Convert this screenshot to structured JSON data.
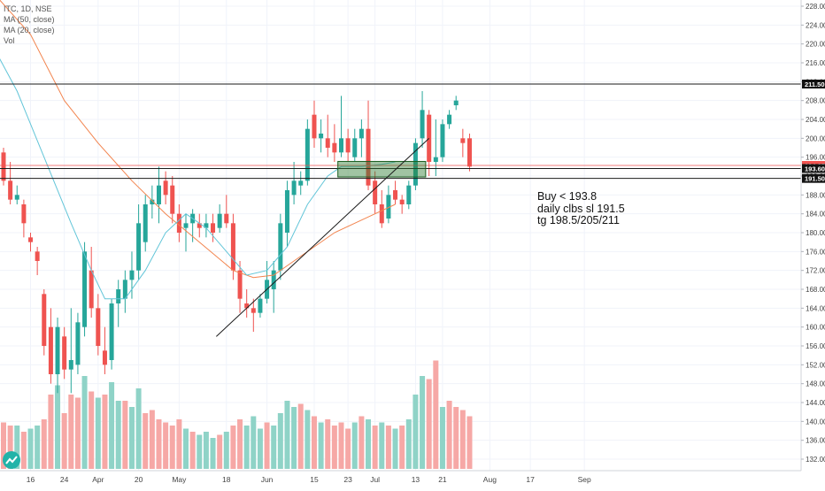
{
  "legend": {
    "symbol": "ITC, 1D, NSE",
    "ma50": "MA (50, close)",
    "ma20": "MA (20, close)",
    "vol": "Vol"
  },
  "annotation": {
    "line1": "Buy < 193.8",
    "line2": "daily clbs sl 191.5",
    "line3": "tg 198.5/205/211"
  },
  "colors": {
    "up": "#26a69a",
    "down": "#ef5350",
    "ma20": "#62c5d8",
    "ma50": "#f2844e",
    "zone": "#2e7d32"
  },
  "chart_data": {
    "type": "candlestick",
    "ylim": [
      130,
      230
    ],
    "yticks": [
      132,
      136,
      140,
      144,
      148,
      152,
      156,
      160,
      164,
      168,
      172,
      176,
      180,
      184,
      188,
      192,
      196,
      200,
      204,
      208,
      212,
      216,
      220,
      224,
      228
    ],
    "xticks": [
      {
        "label": "16",
        "i": 4
      },
      {
        "label": "24",
        "i": 9
      },
      {
        "label": "Apr",
        "i": 14
      },
      {
        "label": "20",
        "i": 20
      },
      {
        "label": "May",
        "i": 26
      },
      {
        "label": "18",
        "i": 33
      },
      {
        "label": "Jun",
        "i": 39
      },
      {
        "label": "15",
        "i": 46
      },
      {
        "label": "23",
        "i": 51
      },
      {
        "label": "Jul",
        "i": 55
      },
      {
        "label": "13",
        "i": 61
      },
      {
        "label": "21",
        "i": 65
      },
      {
        "label": "Aug",
        "i": 72
      },
      {
        "label": "17",
        "i": 78
      },
      {
        "label": "Sep",
        "i": 86
      }
    ],
    "candles": [
      [
        197,
        198,
        190,
        191
      ],
      [
        191,
        195,
        186,
        187
      ],
      [
        187,
        190,
        186,
        188
      ],
      [
        186,
        187,
        179,
        182
      ],
      [
        179,
        180,
        176,
        178
      ],
      [
        176,
        177,
        171,
        174
      ],
      [
        167,
        168,
        154,
        156
      ],
      [
        160,
        164,
        148,
        150
      ],
      [
        150,
        162,
        146,
        160
      ],
      [
        158,
        160,
        149,
        151
      ],
      [
        151,
        164,
        146,
        153
      ],
      [
        152,
        163,
        150,
        161
      ],
      [
        160,
        178,
        158,
        176
      ],
      [
        172,
        177,
        162,
        164
      ],
      [
        164,
        167,
        154,
        156
      ],
      [
        155,
        160,
        150,
        152
      ],
      [
        153,
        166,
        151,
        165
      ],
      [
        165,
        170,
        160,
        168
      ],
      [
        166,
        172,
        163,
        170
      ],
      [
        170,
        176,
        166,
        172
      ],
      [
        172,
        186,
        170,
        182
      ],
      [
        178,
        188,
        176,
        186
      ],
      [
        186,
        190,
        183,
        187
      ],
      [
        186,
        194,
        182,
        190
      ],
      [
        191,
        193,
        186,
        188
      ],
      [
        190,
        192,
        182,
        184
      ],
      [
        184,
        186,
        178,
        180
      ],
      [
        181,
        184,
        176,
        182
      ],
      [
        182,
        185,
        178,
        184
      ],
      [
        182,
        184,
        179,
        181
      ],
      [
        181,
        184,
        179,
        182
      ],
      [
        182,
        184,
        178,
        180
      ],
      [
        181,
        186,
        180,
        184
      ],
      [
        184,
        188,
        181,
        182
      ],
      [
        182,
        184,
        170,
        172
      ],
      [
        172,
        174,
        163,
        166
      ],
      [
        165,
        168,
        162,
        164
      ],
      [
        164,
        166,
        159,
        163
      ],
      [
        163,
        167,
        162,
        166
      ],
      [
        166,
        174,
        165,
        170
      ],
      [
        168,
        174,
        163,
        172
      ],
      [
        172,
        184,
        170,
        182
      ],
      [
        180,
        191,
        177,
        189
      ],
      [
        188,
        195,
        186,
        191
      ],
      [
        190,
        193,
        188,
        191
      ],
      [
        191,
        204,
        190,
        202
      ],
      [
        205,
        208,
        198,
        200
      ],
      [
        200,
        204,
        197,
        201
      ],
      [
        200,
        205,
        196,
        198
      ],
      [
        199,
        203,
        195,
        197
      ],
      [
        197,
        209,
        196,
        200
      ],
      [
        200,
        202,
        195,
        197
      ],
      [
        196,
        202,
        195,
        200
      ],
      [
        200,
        204,
        196,
        202
      ],
      [
        202,
        208,
        189,
        190
      ],
      [
        191,
        193,
        184,
        186
      ],
      [
        186,
        189,
        181,
        182
      ],
      [
        183,
        190,
        182,
        188
      ],
      [
        189,
        191,
        186,
        187
      ],
      [
        187,
        188,
        184,
        186
      ],
      [
        186,
        191,
        185,
        190
      ],
      [
        190,
        200,
        189,
        199
      ],
      [
        200,
        210,
        198,
        206
      ],
      [
        205,
        206,
        192,
        195
      ],
      [
        195,
        204,
        192,
        196
      ],
      [
        196,
        204,
        195,
        203
      ],
      [
        203,
        206,
        202,
        205
      ],
      [
        207,
        209,
        206,
        208
      ],
      [
        200,
        202,
        196,
        199
      ],
      [
        200,
        201,
        193,
        194
      ]
    ],
    "volume": [
      [
        15,
        "down"
      ],
      [
        14,
        "down"
      ],
      [
        14,
        "up"
      ],
      [
        12,
        "down"
      ],
      [
        13,
        "up"
      ],
      [
        14,
        "up"
      ],
      [
        16,
        "down"
      ],
      [
        24,
        "down"
      ],
      [
        27,
        "up"
      ],
      [
        18,
        "down"
      ],
      [
        24,
        "down"
      ],
      [
        23,
        "down"
      ],
      [
        30,
        "up"
      ],
      [
        25,
        "down"
      ],
      [
        23,
        "up"
      ],
      [
        24,
        "down"
      ],
      [
        28,
        "up"
      ],
      [
        22,
        "up"
      ],
      [
        22,
        "down"
      ],
      [
        20,
        "up"
      ],
      [
        26,
        "up"
      ],
      [
        18,
        "down"
      ],
      [
        19,
        "down"
      ],
      [
        16,
        "down"
      ],
      [
        15,
        "down"
      ],
      [
        14,
        "down"
      ],
      [
        16,
        "down"
      ],
      [
        13,
        "up"
      ],
      [
        12,
        "down"
      ],
      [
        11,
        "up"
      ],
      [
        12,
        "up"
      ],
      [
        10,
        "up"
      ],
      [
        11,
        "down"
      ],
      [
        12,
        "up"
      ],
      [
        14,
        "down"
      ],
      [
        16,
        "down"
      ],
      [
        14,
        "up"
      ],
      [
        17,
        "up"
      ],
      [
        13,
        "up"
      ],
      [
        15,
        "down"
      ],
      [
        14,
        "up"
      ],
      [
        18,
        "up"
      ],
      [
        22,
        "up"
      ],
      [
        20,
        "up"
      ],
      [
        21,
        "down"
      ],
      [
        19,
        "up"
      ],
      [
        17,
        "down"
      ],
      [
        15,
        "up"
      ],
      [
        16,
        "down"
      ],
      [
        14,
        "down"
      ],
      [
        15,
        "down"
      ],
      [
        13,
        "down"
      ],
      [
        15,
        "up"
      ],
      [
        17,
        "down"
      ],
      [
        16,
        "up"
      ],
      [
        14,
        "down"
      ],
      [
        15,
        "up"
      ],
      [
        14,
        "down"
      ],
      [
        13,
        "up"
      ],
      [
        14,
        "down"
      ],
      [
        16,
        "up"
      ],
      [
        24,
        "up"
      ],
      [
        30,
        "up"
      ],
      [
        29,
        "down"
      ],
      [
        35,
        "down"
      ],
      [
        20,
        "up"
      ],
      [
        22,
        "down"
      ],
      [
        20,
        "down"
      ],
      [
        19,
        "down"
      ],
      [
        17,
        "down"
      ]
    ],
    "ma20": [
      [
        -1,
        218
      ],
      [
        2,
        210
      ],
      [
        6,
        196
      ],
      [
        10,
        182
      ],
      [
        13,
        172
      ],
      [
        15,
        166
      ],
      [
        18,
        166
      ],
      [
        21,
        172
      ],
      [
        24,
        180
      ],
      [
        27,
        184
      ],
      [
        30,
        181
      ],
      [
        33,
        176
      ],
      [
        36,
        171
      ],
      [
        39,
        172
      ],
      [
        42,
        177
      ],
      [
        45,
        186
      ],
      [
        48,
        192
      ],
      [
        50,
        194
      ],
      [
        53,
        194
      ],
      [
        56,
        194.5
      ],
      [
        58,
        195
      ]
    ],
    "ma50": [
      [
        -1,
        230
      ],
      [
        4,
        222
      ],
      [
        9,
        208
      ],
      [
        14,
        199
      ],
      [
        19,
        191
      ],
      [
        24,
        184
      ],
      [
        29,
        178
      ],
      [
        34,
        172
      ],
      [
        37,
        170.5
      ],
      [
        40,
        171
      ],
      [
        43,
        174
      ],
      [
        46,
        177
      ],
      [
        49,
        180
      ],
      [
        52,
        182
      ],
      [
        55,
        184
      ],
      [
        58,
        186
      ]
    ],
    "hlines": [
      211.5,
      194.25,
      193.6,
      191.5
    ],
    "zone": {
      "x0": 49.5,
      "x1": 62.5,
      "y0": 191.8,
      "y1": 195.1
    },
    "trendline": [
      [
        31.5,
        158
      ],
      [
        63,
        200
      ]
    ],
    "price_labels": [
      {
        "text": "211.50",
        "value": 211.5,
        "kind": "dark"
      },
      {
        "text": "194.25",
        "value": 194.25,
        "kind": "red"
      },
      {
        "text": "193.60",
        "value": 193.6,
        "kind": "dark"
      },
      {
        "text": "191.50",
        "value": 191.5,
        "kind": "dark"
      }
    ]
  }
}
